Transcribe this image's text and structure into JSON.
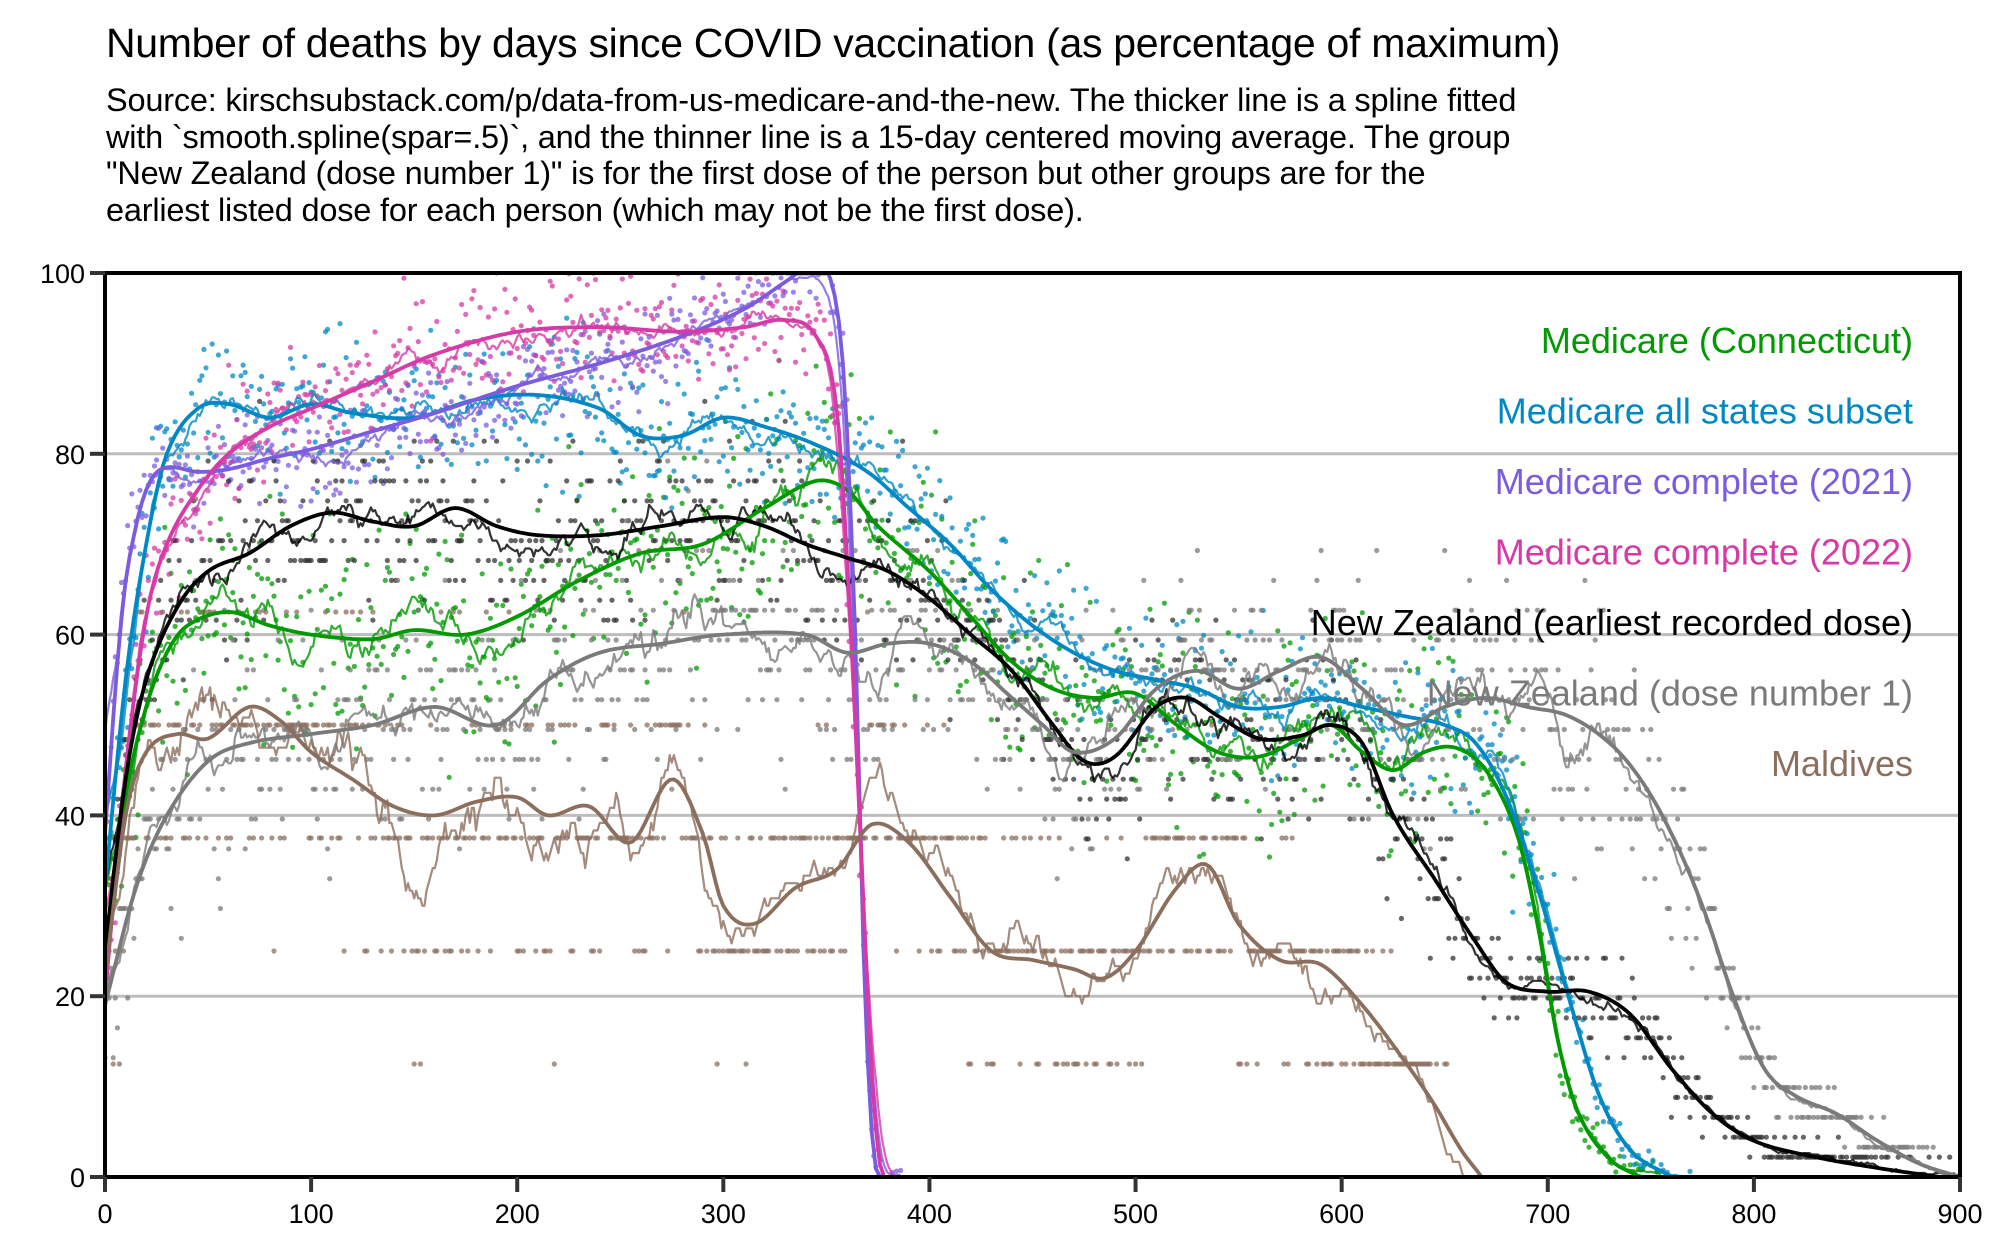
{
  "title": "Number of deaths by days since COVID vaccination (as percentage of maximum)",
  "subtitle_lines": [
    "Source: kirschsubstack.com/p/data-from-us-medicare-and-the-new. The thicker line is a spline fitted",
    "with `smooth.spline(spar=.5)`, and the thinner line is a 15-day centered moving average. The group",
    "\"New Zealand (dose number 1)\" is for the first dose of the person but other groups are for the",
    "earliest listed dose for each person (which may not be the first dose)."
  ],
  "chart_data": {
    "type": "line",
    "title": "Number of deaths by days since COVID vaccination (as percentage of maximum)",
    "xlabel": "",
    "ylabel": "",
    "xlim": [
      0,
      900
    ],
    "ylim": [
      0,
      100
    ],
    "xticks": [
      0,
      100,
      200,
      300,
      400,
      500,
      600,
      700,
      800,
      900
    ],
    "yticks": [
      0,
      20,
      40,
      60,
      80,
      100
    ],
    "grid": "horizontal",
    "legend_position": "top-right",
    "series": [
      {
        "name": "Medicare (Connecticut)",
        "color": "#009900",
        "spline": [
          [
            0,
            24
          ],
          [
            10,
            42
          ],
          [
            20,
            52
          ],
          [
            30,
            58
          ],
          [
            40,
            61
          ],
          [
            60,
            62.5
          ],
          [
            80,
            61
          ],
          [
            100,
            60
          ],
          [
            130,
            59.5
          ],
          [
            150,
            60.5
          ],
          [
            175,
            60
          ],
          [
            200,
            62
          ],
          [
            230,
            66
          ],
          [
            260,
            69
          ],
          [
            290,
            70
          ],
          [
            320,
            74
          ],
          [
            345,
            77
          ],
          [
            360,
            76
          ],
          [
            375,
            72
          ],
          [
            400,
            67
          ],
          [
            420,
            62
          ],
          [
            440,
            57
          ],
          [
            460,
            54
          ],
          [
            480,
            53
          ],
          [
            500,
            53.5
          ],
          [
            520,
            50
          ],
          [
            540,
            47
          ],
          [
            560,
            46.5
          ],
          [
            580,
            48.5
          ],
          [
            595,
            50
          ],
          [
            610,
            47
          ],
          [
            625,
            45
          ],
          [
            640,
            47
          ],
          [
            655,
            47.5
          ],
          [
            670,
            45
          ],
          [
            685,
            38
          ],
          [
            695,
            28
          ],
          [
            705,
            15
          ],
          [
            715,
            7
          ],
          [
            730,
            2
          ],
          [
            745,
            0
          ]
        ]
      },
      {
        "name": "Medicare all states subset",
        "color": "#0088c4",
        "spline": [
          [
            0,
            32
          ],
          [
            10,
            55
          ],
          [
            20,
            70
          ],
          [
            30,
            80
          ],
          [
            45,
            85
          ],
          [
            60,
            85.5
          ],
          [
            80,
            84
          ],
          [
            100,
            85.5
          ],
          [
            120,
            84.5
          ],
          [
            150,
            84
          ],
          [
            180,
            86
          ],
          [
            210,
            86.5
          ],
          [
            240,
            85
          ],
          [
            260,
            82
          ],
          [
            280,
            82
          ],
          [
            300,
            84
          ],
          [
            320,
            83
          ],
          [
            345,
            81
          ],
          [
            370,
            78
          ],
          [
            390,
            74
          ],
          [
            410,
            70
          ],
          [
            430,
            65
          ],
          [
            450,
            61
          ],
          [
            470,
            58
          ],
          [
            490,
            56
          ],
          [
            510,
            55
          ],
          [
            530,
            54
          ],
          [
            550,
            52
          ],
          [
            570,
            52
          ],
          [
            590,
            53
          ],
          [
            610,
            52
          ],
          [
            630,
            51
          ],
          [
            650,
            50
          ],
          [
            665,
            48
          ],
          [
            680,
            42
          ],
          [
            695,
            32
          ],
          [
            710,
            20
          ],
          [
            725,
            9
          ],
          [
            740,
            3
          ],
          [
            760,
            0
          ]
        ]
      },
      {
        "name": "Medicare complete (2021)",
        "color": "#7b5cde",
        "spline": [
          [
            0,
            38
          ],
          [
            8,
            62
          ],
          [
            15,
            72
          ],
          [
            22,
            77
          ],
          [
            30,
            78.5
          ],
          [
            45,
            78
          ],
          [
            60,
            78.3
          ],
          [
            80,
            79.5
          ],
          [
            100,
            80.5
          ],
          [
            130,
            82.5
          ],
          [
            160,
            84.5
          ],
          [
            200,
            87.5
          ],
          [
            240,
            90
          ],
          [
            280,
            93
          ],
          [
            310,
            96
          ],
          [
            330,
            99
          ],
          [
            340,
            100.5
          ],
          [
            350,
            100.5
          ],
          [
            358,
            90
          ],
          [
            364,
            60
          ],
          [
            368,
            25
          ],
          [
            372,
            5
          ],
          [
            376,
            0
          ],
          [
            900,
            0
          ]
        ]
      },
      {
        "name": "Medicare complete (2022)",
        "color": "#d63aa6",
        "spline": [
          [
            0,
            20
          ],
          [
            10,
            45
          ],
          [
            20,
            62
          ],
          [
            30,
            70
          ],
          [
            45,
            76
          ],
          [
            60,
            80
          ],
          [
            80,
            83
          ],
          [
            100,
            85
          ],
          [
            130,
            88
          ],
          [
            160,
            91
          ],
          [
            200,
            93.5
          ],
          [
            240,
            94
          ],
          [
            280,
            93.5
          ],
          [
            310,
            94
          ],
          [
            330,
            94.8
          ],
          [
            345,
            93
          ],
          [
            355,
            85
          ],
          [
            362,
            60
          ],
          [
            368,
            30
          ],
          [
            373,
            8
          ],
          [
            378,
            0
          ],
          [
            900,
            0
          ]
        ]
      },
      {
        "name": "New Zealand (earliest recorded dose)",
        "color": "#000000",
        "spline": [
          [
            0,
            25
          ],
          [
            10,
            44
          ],
          [
            20,
            55
          ],
          [
            35,
            63
          ],
          [
            50,
            67
          ],
          [
            70,
            69
          ],
          [
            90,
            72
          ],
          [
            110,
            73.5
          ],
          [
            130,
            72.5
          ],
          [
            150,
            72
          ],
          [
            170,
            74
          ],
          [
            190,
            72
          ],
          [
            210,
            71
          ],
          [
            240,
            71
          ],
          [
            270,
            72
          ],
          [
            300,
            73
          ],
          [
            320,
            72
          ],
          [
            340,
            70
          ],
          [
            360,
            68.5
          ],
          [
            380,
            67
          ],
          [
            400,
            64
          ],
          [
            420,
            60
          ],
          [
            440,
            56
          ],
          [
            460,
            50
          ],
          [
            475,
            46
          ],
          [
            490,
            46.5
          ],
          [
            510,
            52
          ],
          [
            525,
            53
          ],
          [
            540,
            51
          ],
          [
            560,
            48.5
          ],
          [
            580,
            48.8
          ],
          [
            595,
            50
          ],
          [
            610,
            48
          ],
          [
            625,
            40
          ],
          [
            645,
            33
          ],
          [
            665,
            26
          ],
          [
            680,
            21.5
          ],
          [
            700,
            20.5
          ],
          [
            720,
            20.5
          ],
          [
            740,
            18
          ],
          [
            760,
            12
          ],
          [
            780,
            7
          ],
          [
            800,
            4
          ],
          [
            830,
            2.2
          ],
          [
            860,
            1
          ],
          [
            890,
            0
          ]
        ]
      },
      {
        "name": "New Zealand (dose number 1)",
        "color": "#7a7a7a",
        "spline": [
          [
            0,
            19
          ],
          [
            15,
            32
          ],
          [
            30,
            40
          ],
          [
            50,
            46
          ],
          [
            70,
            48
          ],
          [
            100,
            49
          ],
          [
            130,
            50
          ],
          [
            160,
            52
          ],
          [
            190,
            50
          ],
          [
            215,
            55
          ],
          [
            240,
            58
          ],
          [
            270,
            59
          ],
          [
            300,
            60
          ],
          [
            340,
            60
          ],
          [
            360,
            58
          ],
          [
            380,
            59
          ],
          [
            400,
            59
          ],
          [
            420,
            57
          ],
          [
            440,
            53
          ],
          [
            455,
            50
          ],
          [
            470,
            47
          ],
          [
            490,
            48.5
          ],
          [
            510,
            54
          ],
          [
            530,
            56
          ],
          [
            550,
            54
          ],
          [
            570,
            56
          ],
          [
            590,
            57.5
          ],
          [
            610,
            54
          ],
          [
            630,
            50
          ],
          [
            650,
            52
          ],
          [
            670,
            53
          ],
          [
            690,
            52
          ],
          [
            710,
            51
          ],
          [
            730,
            48
          ],
          [
            745,
            44
          ],
          [
            760,
            38
          ],
          [
            775,
            30
          ],
          [
            790,
            20
          ],
          [
            805,
            12
          ],
          [
            820,
            9
          ],
          [
            840,
            7
          ],
          [
            860,
            4
          ],
          [
            880,
            1.5
          ],
          [
            900,
            0
          ]
        ]
      },
      {
        "name": "Maldives",
        "color": "#8c6e5d",
        "spline": [
          [
            0,
            22
          ],
          [
            10,
            40
          ],
          [
            20,
            47
          ],
          [
            35,
            49
          ],
          [
            50,
            48.5
          ],
          [
            70,
            52
          ],
          [
            85,
            50.5
          ],
          [
            100,
            47
          ],
          [
            120,
            44
          ],
          [
            140,
            41
          ],
          [
            160,
            40
          ],
          [
            180,
            41.5
          ],
          [
            200,
            42
          ],
          [
            215,
            40
          ],
          [
            235,
            41
          ],
          [
            255,
            37
          ],
          [
            275,
            44
          ],
          [
            290,
            38
          ],
          [
            300,
            30
          ],
          [
            315,
            28
          ],
          [
            335,
            32
          ],
          [
            355,
            34
          ],
          [
            372,
            39
          ],
          [
            390,
            37
          ],
          [
            410,
            31
          ],
          [
            430,
            25
          ],
          [
            450,
            24
          ],
          [
            470,
            23
          ],
          [
            485,
            22
          ],
          [
            500,
            25
          ],
          [
            520,
            32
          ],
          [
            535,
            34.5
          ],
          [
            550,
            28
          ],
          [
            570,
            24
          ],
          [
            590,
            23.5
          ],
          [
            610,
            19
          ],
          [
            630,
            13
          ],
          [
            645,
            8
          ],
          [
            658,
            3
          ],
          [
            668,
            0
          ]
        ]
      }
    ]
  },
  "legend": [
    {
      "label": "Medicare (Connecticut)",
      "color": "#009900"
    },
    {
      "label": "Medicare all states subset",
      "color": "#0088c4"
    },
    {
      "label": "Medicare complete (2021)",
      "color": "#7b5cde"
    },
    {
      "label": "Medicare complete (2022)",
      "color": "#d63aa6"
    },
    {
      "label": "New Zealand (earliest recorded dose)",
      "color": "#000000"
    },
    {
      "label": "New Zealand (dose number 1)",
      "color": "#7a7a7a"
    },
    {
      "label": "Maldives",
      "color": "#8c6e5d"
    }
  ]
}
